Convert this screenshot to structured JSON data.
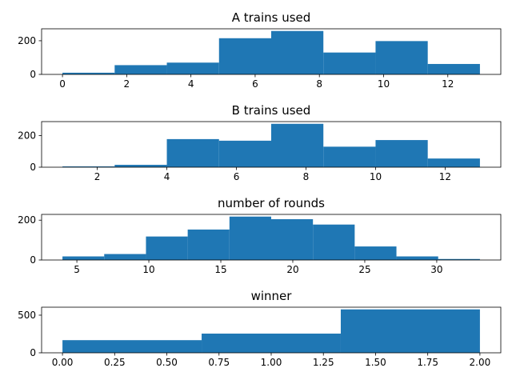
{
  "chart_data": [
    {
      "type": "bar",
      "title": "A trains used",
      "bin_edges": [
        0,
        1.625,
        3.25,
        4.875,
        6.5,
        8.125,
        9.75,
        11.375,
        13
      ],
      "values": [
        10,
        55,
        70,
        215,
        258,
        130,
        198,
        62
      ],
      "xlim": [
        -0.65,
        13.65
      ],
      "ylim": [
        0,
        271
      ],
      "xticks": [
        0,
        2,
        4,
        6,
        8,
        10,
        12
      ],
      "yticks": [
        0,
        200
      ],
      "color": "#1f77b4"
    },
    {
      "type": "bar",
      "title": "B trains used",
      "bin_edges": [
        1,
        2.5,
        4,
        5.5,
        7,
        8.5,
        10,
        11.5,
        13
      ],
      "values": [
        5,
        15,
        178,
        168,
        275,
        130,
        172,
        55
      ],
      "xlim": [
        0.4,
        13.6
      ],
      "ylim": [
        0,
        289
      ],
      "xticks": [
        2,
        4,
        6,
        8,
        10,
        12
      ],
      "yticks": [
        0,
        200
      ],
      "color": "#1f77b4"
    },
    {
      "type": "bar",
      "title": "number of rounds",
      "bin_edges": [
        4,
        6.9,
        9.8,
        12.7,
        15.6,
        18.5,
        21.4,
        24.3,
        27.2,
        30.1,
        33
      ],
      "values": [
        18,
        30,
        118,
        153,
        218,
        205,
        178,
        68,
        18,
        5
      ],
      "xlim": [
        2.55,
        34.45
      ],
      "ylim": [
        0,
        229
      ],
      "xticks": [
        5,
        10,
        15,
        20,
        25,
        30
      ],
      "yticks": [
        0,
        200
      ],
      "color": "#1f77b4"
    },
    {
      "type": "bar",
      "title": "winner",
      "bin_edges": [
        0,
        0.6667,
        1.3333,
        2
      ],
      "values": [
        168,
        255,
        577
      ],
      "xlim": [
        -0.1,
        2.1
      ],
      "ylim": [
        0,
        606
      ],
      "xticks": [
        "0.00",
        "0.25",
        "0.50",
        "0.75",
        "1.00",
        "1.25",
        "1.50",
        "1.75",
        "2.00"
      ],
      "yticks": [
        0,
        500
      ],
      "color": "#1f77b4"
    }
  ]
}
